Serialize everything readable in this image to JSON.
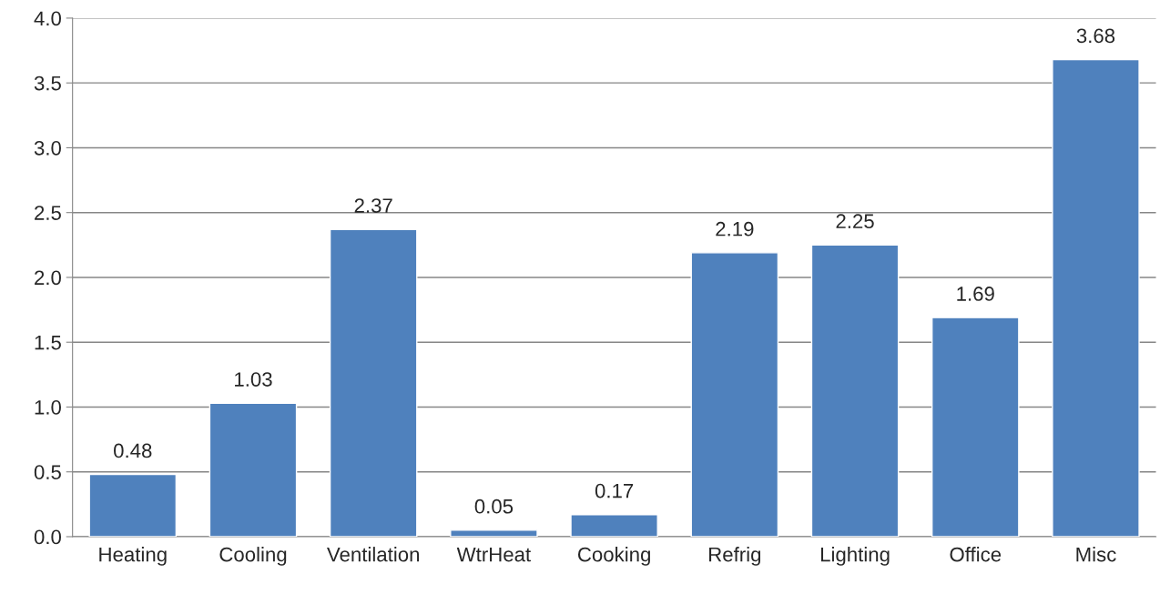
{
  "chart_data": {
    "type": "bar",
    "categories": [
      "Heating",
      "Cooling",
      "Ventilation",
      "WtrHeat",
      "Cooking",
      "Refrig",
      "Lighting",
      "Office",
      "Misc"
    ],
    "values": [
      0.48,
      1.03,
      2.37,
      0.05,
      0.17,
      2.19,
      2.25,
      1.69,
      3.68
    ],
    "color": "#4f81bd",
    "ylim": [
      0,
      4
    ],
    "yticks": [
      {
        "value": 0,
        "label": "0.0"
      },
      {
        "value": 0.5,
        "label": "0.5"
      },
      {
        "value": 1,
        "label": "1.0"
      },
      {
        "value": 1.5,
        "label": "1.5"
      },
      {
        "value": 2,
        "label": "2.0"
      },
      {
        "value": 2.5,
        "label": "2.5"
      },
      {
        "value": 3,
        "label": "3.0"
      },
      {
        "value": 3.5,
        "label": "3.5"
      },
      {
        "value": 4,
        "label": "4.0"
      }
    ],
    "grid": "y",
    "data_labels": true,
    "legend": false
  }
}
